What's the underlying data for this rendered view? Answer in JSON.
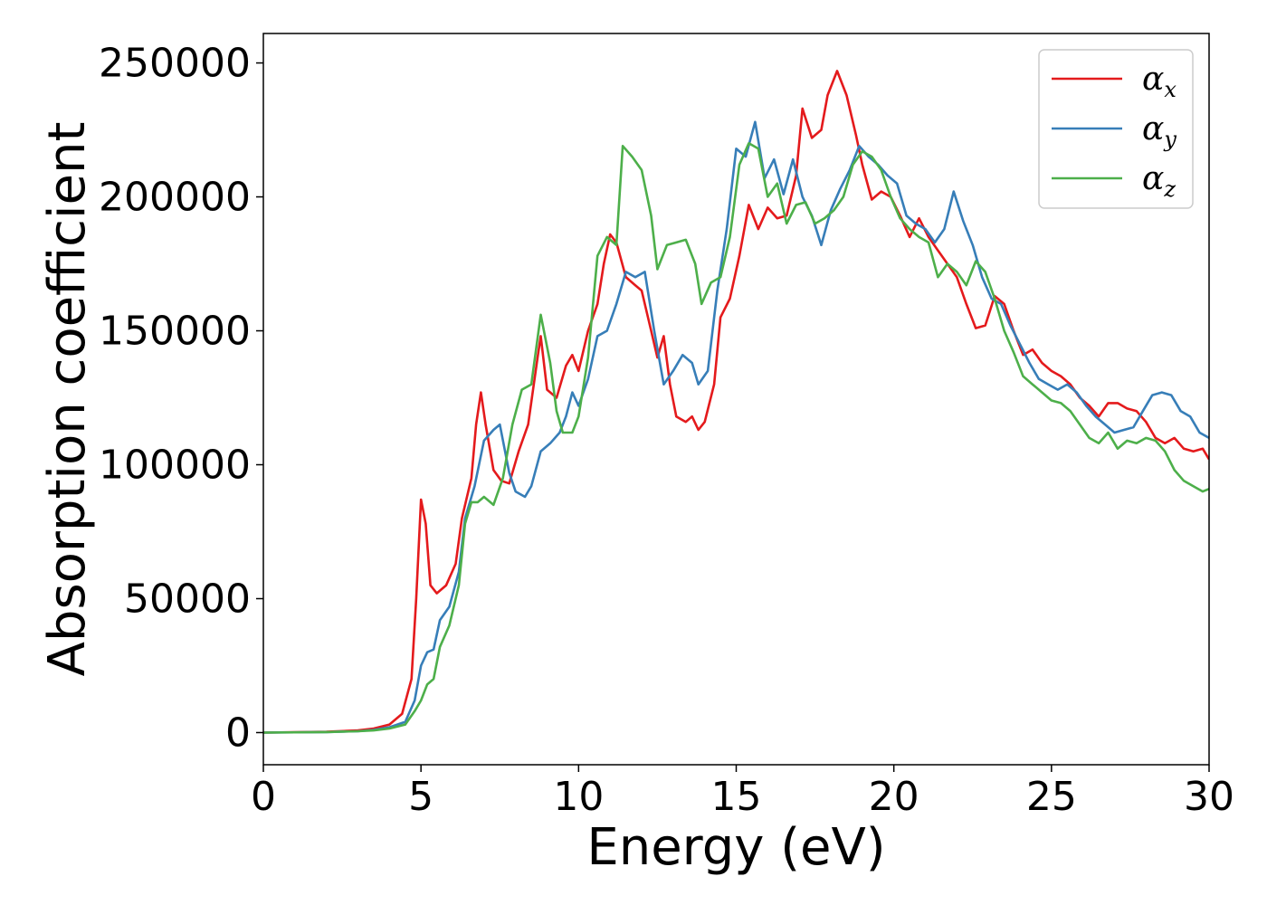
{
  "chart_data": {
    "type": "line",
    "xlabel": "Energy (eV)",
    "ylabel": "Absorption coefficient",
    "xlim": [
      0,
      30
    ],
    "ylim": [
      -12000,
      261000
    ],
    "x_ticks": [
      "0",
      "5",
      "10",
      "15",
      "20",
      "25",
      "30"
    ],
    "y_ticks": [
      "0",
      "50000",
      "100000",
      "150000",
      "200000",
      "250000"
    ],
    "grid": false,
    "legend_position": "top-right",
    "series": [
      {
        "name": "α",
        "subscript": "x",
        "color": "#e41a1c",
        "points": [
          [
            0,
            0
          ],
          [
            2,
            300
          ],
          [
            3,
            800
          ],
          [
            3.5,
            1500
          ],
          [
            4,
            3000
          ],
          [
            4.4,
            7000
          ],
          [
            4.7,
            20000
          ],
          [
            4.85,
            50000
          ],
          [
            5.0,
            87000
          ],
          [
            5.15,
            78000
          ],
          [
            5.3,
            55000
          ],
          [
            5.5,
            52000
          ],
          [
            5.8,
            55000
          ],
          [
            6.1,
            63000
          ],
          [
            6.3,
            80000
          ],
          [
            6.6,
            95000
          ],
          [
            6.75,
            115000
          ],
          [
            6.9,
            127000
          ],
          [
            7.05,
            115000
          ],
          [
            7.3,
            98000
          ],
          [
            7.55,
            94000
          ],
          [
            7.8,
            93000
          ],
          [
            8.1,
            105000
          ],
          [
            8.4,
            115000
          ],
          [
            8.7,
            140000
          ],
          [
            8.8,
            148000
          ],
          [
            9.0,
            128000
          ],
          [
            9.3,
            125000
          ],
          [
            9.6,
            137000
          ],
          [
            9.8,
            141000
          ],
          [
            10.0,
            135000
          ],
          [
            10.3,
            150000
          ],
          [
            10.6,
            160000
          ],
          [
            10.8,
            175000
          ],
          [
            11.0,
            186000
          ],
          [
            11.2,
            183000
          ],
          [
            11.5,
            170000
          ],
          [
            11.8,
            167000
          ],
          [
            12.0,
            165000
          ],
          [
            12.3,
            150000
          ],
          [
            12.5,
            140000
          ],
          [
            12.7,
            148000
          ],
          [
            12.9,
            130000
          ],
          [
            13.1,
            118000
          ],
          [
            13.4,
            116000
          ],
          [
            13.6,
            118000
          ],
          [
            13.8,
            113000
          ],
          [
            14.0,
            116000
          ],
          [
            14.3,
            130000
          ],
          [
            14.5,
            155000
          ],
          [
            14.8,
            162000
          ],
          [
            15.1,
            178000
          ],
          [
            15.4,
            197000
          ],
          [
            15.7,
            188000
          ],
          [
            16.0,
            196000
          ],
          [
            16.3,
            192000
          ],
          [
            16.6,
            193000
          ],
          [
            16.9,
            208000
          ],
          [
            17.1,
            233000
          ],
          [
            17.4,
            222000
          ],
          [
            17.7,
            225000
          ],
          [
            17.9,
            238000
          ],
          [
            18.2,
            247000
          ],
          [
            18.5,
            238000
          ],
          [
            18.8,
            223000
          ],
          [
            19.0,
            212000
          ],
          [
            19.3,
            199000
          ],
          [
            19.6,
            202000
          ],
          [
            19.9,
            200000
          ],
          [
            20.2,
            193000
          ],
          [
            20.5,
            185000
          ],
          [
            20.8,
            192000
          ],
          [
            21.1,
            185000
          ],
          [
            21.4,
            180000
          ],
          [
            21.7,
            175000
          ],
          [
            22.0,
            170000
          ],
          [
            22.3,
            160000
          ],
          [
            22.6,
            151000
          ],
          [
            22.9,
            152000
          ],
          [
            23.2,
            163000
          ],
          [
            23.5,
            160000
          ],
          [
            23.8,
            150000
          ],
          [
            24.1,
            141000
          ],
          [
            24.4,
            143000
          ],
          [
            24.7,
            138000
          ],
          [
            25.0,
            135000
          ],
          [
            25.3,
            133000
          ],
          [
            25.6,
            130000
          ],
          [
            25.9,
            125000
          ],
          [
            26.2,
            122000
          ],
          [
            26.5,
            118000
          ],
          [
            26.8,
            123000
          ],
          [
            27.1,
            123000
          ],
          [
            27.4,
            121000
          ],
          [
            27.7,
            120000
          ],
          [
            28.0,
            116000
          ],
          [
            28.3,
            110000
          ],
          [
            28.6,
            108000
          ],
          [
            28.9,
            110000
          ],
          [
            29.2,
            106000
          ],
          [
            29.5,
            105000
          ],
          [
            29.8,
            106000
          ],
          [
            30.0,
            102000
          ]
        ]
      },
      {
        "name": "α",
        "subscript": "y",
        "color": "#377eb8",
        "points": [
          [
            0,
            0
          ],
          [
            2,
            200
          ],
          [
            3,
            500
          ],
          [
            3.5,
            1000
          ],
          [
            4,
            2000
          ],
          [
            4.5,
            4000
          ],
          [
            4.8,
            12000
          ],
          [
            5.0,
            25000
          ],
          [
            5.2,
            30000
          ],
          [
            5.4,
            31000
          ],
          [
            5.6,
            42000
          ],
          [
            5.9,
            47000
          ],
          [
            6.2,
            60000
          ],
          [
            6.4,
            80000
          ],
          [
            6.7,
            92000
          ],
          [
            7.0,
            109000
          ],
          [
            7.3,
            113000
          ],
          [
            7.5,
            115000
          ],
          [
            7.8,
            97000
          ],
          [
            8.0,
            90000
          ],
          [
            8.3,
            88000
          ],
          [
            8.5,
            92000
          ],
          [
            8.8,
            105000
          ],
          [
            9.1,
            108000
          ],
          [
            9.4,
            112000
          ],
          [
            9.6,
            118000
          ],
          [
            9.8,
            127000
          ],
          [
            10.0,
            122000
          ],
          [
            10.3,
            132000
          ],
          [
            10.6,
            148000
          ],
          [
            10.9,
            150000
          ],
          [
            11.2,
            160000
          ],
          [
            11.5,
            172000
          ],
          [
            11.8,
            170000
          ],
          [
            12.1,
            172000
          ],
          [
            12.4,
            150000
          ],
          [
            12.7,
            130000
          ],
          [
            13.0,
            135000
          ],
          [
            13.3,
            141000
          ],
          [
            13.6,
            138000
          ],
          [
            13.8,
            130000
          ],
          [
            14.1,
            135000
          ],
          [
            14.4,
            165000
          ],
          [
            14.7,
            188000
          ],
          [
            15.0,
            218000
          ],
          [
            15.3,
            215000
          ],
          [
            15.6,
            228000
          ],
          [
            15.9,
            207000
          ],
          [
            16.2,
            214000
          ],
          [
            16.5,
            201000
          ],
          [
            16.8,
            214000
          ],
          [
            17.1,
            200000
          ],
          [
            17.4,
            193000
          ],
          [
            17.7,
            182000
          ],
          [
            18.0,
            195000
          ],
          [
            18.3,
            203000
          ],
          [
            18.6,
            210000
          ],
          [
            18.9,
            219000
          ],
          [
            19.2,
            215000
          ],
          [
            19.5,
            212000
          ],
          [
            19.8,
            208000
          ],
          [
            20.1,
            205000
          ],
          [
            20.4,
            193000
          ],
          [
            20.7,
            190000
          ],
          [
            21.0,
            188000
          ],
          [
            21.3,
            183000
          ],
          [
            21.6,
            188000
          ],
          [
            21.9,
            202000
          ],
          [
            22.2,
            191000
          ],
          [
            22.5,
            182000
          ],
          [
            22.8,
            170000
          ],
          [
            23.1,
            162000
          ],
          [
            23.4,
            160000
          ],
          [
            23.7,
            152000
          ],
          [
            24.0,
            145000
          ],
          [
            24.3,
            138000
          ],
          [
            24.6,
            132000
          ],
          [
            24.9,
            130000
          ],
          [
            25.2,
            128000
          ],
          [
            25.5,
            130000
          ],
          [
            25.8,
            127000
          ],
          [
            26.1,
            122000
          ],
          [
            26.4,
            118000
          ],
          [
            26.7,
            115000
          ],
          [
            27.0,
            112000
          ],
          [
            27.3,
            113000
          ],
          [
            27.6,
            114000
          ],
          [
            27.9,
            120000
          ],
          [
            28.2,
            126000
          ],
          [
            28.5,
            127000
          ],
          [
            28.8,
            126000
          ],
          [
            29.1,
            120000
          ],
          [
            29.4,
            118000
          ],
          [
            29.7,
            112000
          ],
          [
            30.0,
            110000
          ]
        ]
      },
      {
        "name": "α",
        "subscript": "z",
        "color": "#4daf4a",
        "points": [
          [
            0,
            0
          ],
          [
            2,
            200
          ],
          [
            3,
            500
          ],
          [
            3.5,
            800
          ],
          [
            4,
            1500
          ],
          [
            4.5,
            3000
          ],
          [
            4.8,
            8000
          ],
          [
            5.0,
            12000
          ],
          [
            5.2,
            18000
          ],
          [
            5.4,
            20000
          ],
          [
            5.6,
            32000
          ],
          [
            5.9,
            40000
          ],
          [
            6.2,
            55000
          ],
          [
            6.4,
            78000
          ],
          [
            6.6,
            86000
          ],
          [
            6.8,
            86000
          ],
          [
            7.0,
            88000
          ],
          [
            7.3,
            85000
          ],
          [
            7.6,
            95000
          ],
          [
            7.9,
            115000
          ],
          [
            8.2,
            128000
          ],
          [
            8.5,
            130000
          ],
          [
            8.8,
            156000
          ],
          [
            9.1,
            138000
          ],
          [
            9.3,
            120000
          ],
          [
            9.5,
            112000
          ],
          [
            9.8,
            112000
          ],
          [
            10.0,
            118000
          ],
          [
            10.3,
            140000
          ],
          [
            10.6,
            178000
          ],
          [
            10.9,
            185000
          ],
          [
            11.2,
            182000
          ],
          [
            11.4,
            219000
          ],
          [
            11.7,
            215000
          ],
          [
            12.0,
            210000
          ],
          [
            12.3,
            193000
          ],
          [
            12.5,
            173000
          ],
          [
            12.8,
            182000
          ],
          [
            13.1,
            183000
          ],
          [
            13.4,
            184000
          ],
          [
            13.7,
            175000
          ],
          [
            13.9,
            160000
          ],
          [
            14.2,
            168000
          ],
          [
            14.5,
            170000
          ],
          [
            14.8,
            185000
          ],
          [
            15.1,
            212000
          ],
          [
            15.4,
            220000
          ],
          [
            15.7,
            218000
          ],
          [
            16.0,
            200000
          ],
          [
            16.3,
            205000
          ],
          [
            16.6,
            190000
          ],
          [
            16.9,
            197000
          ],
          [
            17.2,
            198000
          ],
          [
            17.5,
            190000
          ],
          [
            17.8,
            192000
          ],
          [
            18.1,
            195000
          ],
          [
            18.4,
            200000
          ],
          [
            18.7,
            212000
          ],
          [
            19.0,
            217000
          ],
          [
            19.3,
            215000
          ],
          [
            19.6,
            210000
          ],
          [
            19.9,
            200000
          ],
          [
            20.2,
            192000
          ],
          [
            20.5,
            188000
          ],
          [
            20.8,
            185000
          ],
          [
            21.1,
            183000
          ],
          [
            21.4,
            170000
          ],
          [
            21.7,
            175000
          ],
          [
            22.0,
            172000
          ],
          [
            22.3,
            167000
          ],
          [
            22.6,
            176000
          ],
          [
            22.9,
            172000
          ],
          [
            23.2,
            162000
          ],
          [
            23.5,
            150000
          ],
          [
            23.8,
            142000
          ],
          [
            24.1,
            133000
          ],
          [
            24.4,
            130000
          ],
          [
            24.7,
            127000
          ],
          [
            25.0,
            124000
          ],
          [
            25.3,
            123000
          ],
          [
            25.6,
            120000
          ],
          [
            25.9,
            115000
          ],
          [
            26.2,
            110000
          ],
          [
            26.5,
            108000
          ],
          [
            26.8,
            112000
          ],
          [
            27.1,
            106000
          ],
          [
            27.4,
            109000
          ],
          [
            27.7,
            108000
          ],
          [
            28.0,
            110000
          ],
          [
            28.3,
            109000
          ],
          [
            28.6,
            105000
          ],
          [
            28.9,
            98000
          ],
          [
            29.2,
            94000
          ],
          [
            29.5,
            92000
          ],
          [
            29.8,
            90000
          ],
          [
            30.0,
            91000
          ]
        ]
      }
    ]
  }
}
